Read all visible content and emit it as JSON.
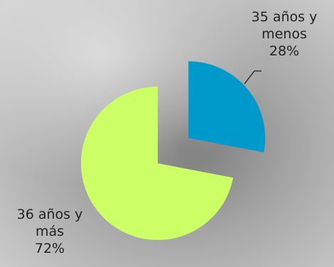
{
  "chart_data": {
    "type": "pie",
    "title": "",
    "slices": [
      {
        "label": "35 años y menos",
        "label_lines": [
          "35 años y",
          "menos"
        ],
        "percent_label": "28%",
        "value": 28,
        "color": "#0099CC",
        "exploded": true
      },
      {
        "label": "36 años y más",
        "label_lines": [
          "36 años y",
          "más"
        ],
        "percent_label": "72%",
        "value": 72,
        "color": "#CCFF66",
        "exploded": false
      }
    ],
    "start_angle_deg": 0,
    "direction": "clockwise",
    "legend": "none",
    "background_color": "#B8B8B8"
  }
}
